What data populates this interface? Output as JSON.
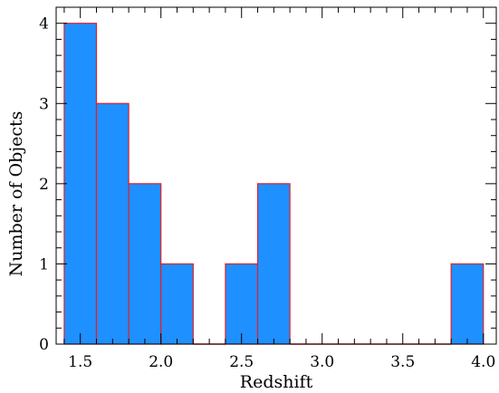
{
  "chart_data": {
    "type": "bar",
    "title": "",
    "xlabel": "Redshift",
    "ylabel": "Number of Objects",
    "xlim": [
      1.35,
      4.08
    ],
    "ylim": [
      0,
      4.2
    ],
    "bin_width": 0.2,
    "bins": [
      {
        "start": 1.4,
        "end": 1.6,
        "count": 4
      },
      {
        "start": 1.6,
        "end": 1.8,
        "count": 3
      },
      {
        "start": 1.8,
        "end": 2.0,
        "count": 2
      },
      {
        "start": 2.0,
        "end": 2.2,
        "count": 1
      },
      {
        "start": 2.2,
        "end": 2.4,
        "count": 0
      },
      {
        "start": 2.4,
        "end": 2.6,
        "count": 1
      },
      {
        "start": 2.6,
        "end": 2.8,
        "count": 2
      },
      {
        "start": 2.8,
        "end": 3.0,
        "count": 0
      },
      {
        "start": 3.0,
        "end": 3.2,
        "count": 0
      },
      {
        "start": 3.2,
        "end": 3.4,
        "count": 0
      },
      {
        "start": 3.4,
        "end": 3.6,
        "count": 0
      },
      {
        "start": 3.6,
        "end": 3.8,
        "count": 0
      },
      {
        "start": 3.8,
        "end": 4.0,
        "count": 1
      }
    ],
    "x_ticks": [
      1.5,
      2.0,
      2.5,
      3.0,
      3.5,
      4.0
    ],
    "x_tick_labels": [
      "1.5",
      "2.0",
      "2.5",
      "3.0",
      "3.5",
      "4.0"
    ],
    "y_ticks": [
      0,
      1,
      2,
      3,
      4
    ],
    "y_tick_labels": [
      "0",
      "1",
      "2",
      "3",
      "4"
    ],
    "grid": false,
    "colors": {
      "bar_fill": "#1e90ff",
      "bar_edge": "#e0202a"
    }
  }
}
